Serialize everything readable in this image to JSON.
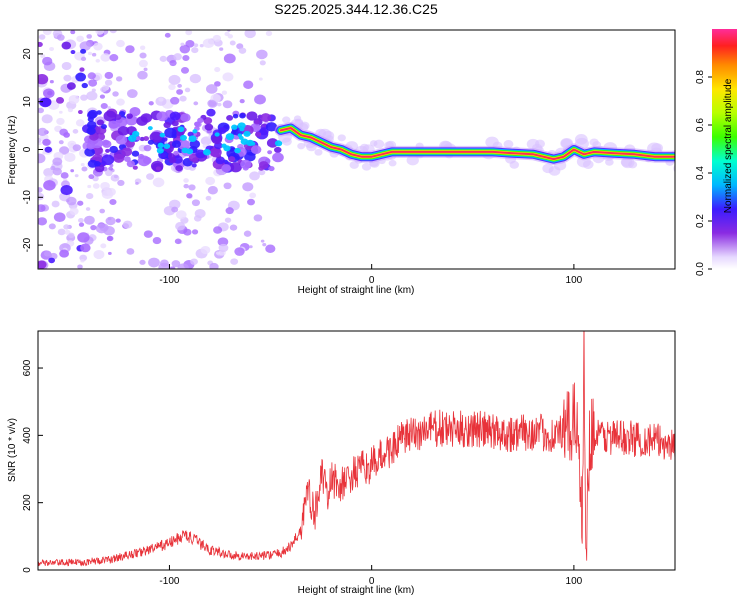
{
  "title": "S225.2025.344.12.36.C25",
  "chart_data": [
    {
      "type": "heatmap",
      "title": "S225.2025.344.12.36.C25",
      "xlabel": "Height of straight line (km)",
      "ylabel": "Frequency (Hz)",
      "xlim": [
        -165,
        150
      ],
      "ylim": [
        -25,
        25
      ],
      "x_ticks": [
        -100,
        0,
        100
      ],
      "y_ticks": [
        -20,
        -10,
        0,
        10,
        20
      ],
      "colorbar": {
        "label": "Normalized spectral amplitude",
        "range": [
          0,
          1
        ],
        "ticks": [
          "0.0",
          "0.2",
          "0.4",
          "0.6",
          "0.8"
        ]
      },
      "ridge": [
        [
          -45,
          4
        ],
        [
          -40,
          4.5
        ],
        [
          -35,
          3
        ],
        [
          -30,
          2.5
        ],
        [
          -25,
          1.5
        ],
        [
          -20,
          0.5
        ],
        [
          -15,
          0
        ],
        [
          -10,
          -1
        ],
        [
          -5,
          -1.5
        ],
        [
          0,
          -1.5
        ],
        [
          5,
          -1
        ],
        [
          10,
          -0.5
        ],
        [
          20,
          -0.5
        ],
        [
          40,
          -0.5
        ],
        [
          60,
          -0.5
        ],
        [
          70,
          -0.8
        ],
        [
          80,
          -1
        ],
        [
          90,
          -2
        ],
        [
          95,
          -1.5
        ],
        [
          100,
          0
        ],
        [
          105,
          -1
        ],
        [
          110,
          -0.5
        ],
        [
          120,
          -0.8
        ],
        [
          130,
          -1
        ],
        [
          140,
          -1.5
        ],
        [
          150,
          -1.5
        ]
      ]
    },
    {
      "type": "line",
      "xlabel": "Height of straight line (km)",
      "ylabel": "SNR (10 * v/v)",
      "xlim": [
        -165,
        150
      ],
      "ylim": [
        0,
        710
      ],
      "x_ticks": [
        -100,
        0,
        100
      ],
      "y_ticks": [
        0,
        200,
        400,
        600
      ],
      "series": [
        {
          "color": "#e8333a",
          "points": [
            [
              -165,
              20
            ],
            [
              -150,
              22
            ],
            [
              -140,
              25
            ],
            [
              -130,
              30
            ],
            [
              -120,
              45
            ],
            [
              -110,
              60
            ],
            [
              -100,
              80
            ],
            [
              -92,
              105
            ],
            [
              -88,
              90
            ],
            [
              -80,
              60
            ],
            [
              -70,
              45
            ],
            [
              -60,
              40
            ],
            [
              -50,
              45
            ],
            [
              -45,
              50
            ],
            [
              -40,
              70
            ],
            [
              -35,
              120
            ],
            [
              -32,
              240
            ],
            [
              -28,
              160
            ],
            [
              -25,
              300
            ],
            [
              -22,
              210
            ],
            [
              -20,
              270
            ],
            [
              -15,
              250
            ],
            [
              -10,
              280
            ],
            [
              -5,
              300
            ],
            [
              0,
              310
            ],
            [
              5,
              340
            ],
            [
              10,
              360
            ],
            [
              15,
              390
            ],
            [
              20,
              400
            ],
            [
              25,
              410
            ],
            [
              30,
              420
            ],
            [
              40,
              415
            ],
            [
              50,
              420
            ],
            [
              60,
              410
            ],
            [
              70,
              405
            ],
            [
              80,
              410
            ],
            [
              90,
              400
            ],
            [
              98,
              420
            ],
            [
              102,
              450
            ],
            [
              104,
              100
            ],
            [
              105,
              700
            ],
            [
              106,
              60
            ],
            [
              108,
              420
            ],
            [
              110,
              400
            ],
            [
              120,
              395
            ],
            [
              130,
              390
            ],
            [
              140,
              385
            ],
            [
              150,
              370
            ]
          ]
        }
      ]
    }
  ]
}
